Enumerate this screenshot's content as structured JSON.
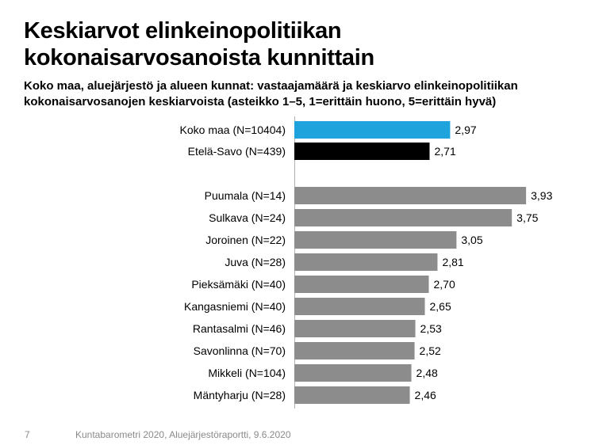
{
  "title_line1": "Keskiarvot elinkeinopolitiikan",
  "title_line2": "kokonaisarvosanoista kunnittain",
  "subtitle_line1": "Koko maa, aluejärjestö ja alueen kunnat: vastaajamäärä ja keskiarvo elinkeinopolitiikan",
  "subtitle_line2": "kokonaisarvosanojen keskiarvoista (asteikko 1–5,  1=erittäin huono, 5=erittäin hyvä)",
  "footer": {
    "page_number": "7",
    "source": "Kuntabarometri 2020, Aluejärjestöraportti, 9.6.2020"
  },
  "colors": {
    "national": "#1fa3dc",
    "region": "#000000",
    "municipality": "#8c8c8c"
  },
  "chart_data": {
    "type": "bar",
    "orientation": "horizontal",
    "categories": [
      "Koko maa (N=10404)",
      "Etelä-Savo (N=439)",
      "Puumala (N=14)",
      "Sulkava (N=24)",
      "Joroinen (N=22)",
      "Juva (N=28)",
      "Pieksämäki (N=40)",
      "Kangasniemi (N=40)",
      "Rantasalmi (N=46)",
      "Savonlinna (N=70)",
      "Mikkeli (N=104)",
      "Mäntyharju (N=28)"
    ],
    "values": [
      2.97,
      2.71,
      3.93,
      3.75,
      3.05,
      2.81,
      2.7,
      2.65,
      2.53,
      2.52,
      2.48,
      2.46
    ],
    "value_labels": [
      "2,97",
      "2,71",
      "3,93",
      "3,75",
      "3,05",
      "2,81",
      "2,70",
      "2,65",
      "2,53",
      "2,52",
      "2,48",
      "2,46"
    ],
    "groups": [
      "national",
      "region",
      "municipality",
      "municipality",
      "municipality",
      "municipality",
      "municipality",
      "municipality",
      "municipality",
      "municipality",
      "municipality",
      "municipality"
    ],
    "xlim": [
      1,
      5
    ],
    "grid": false,
    "legend": "none"
  }
}
